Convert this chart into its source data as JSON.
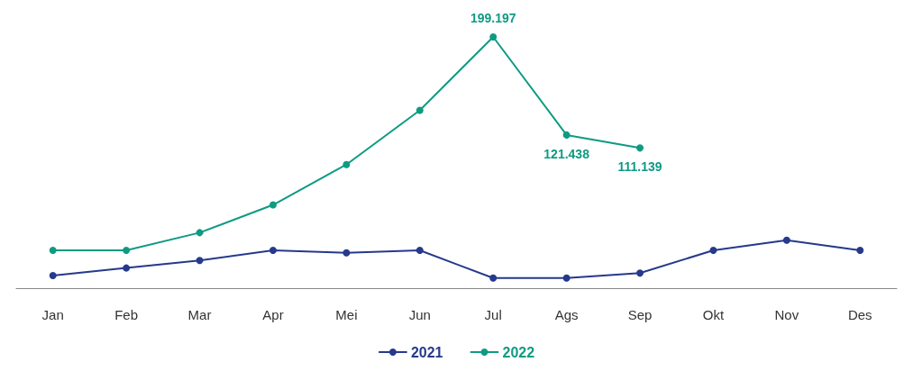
{
  "chart_data": {
    "type": "line",
    "categories": [
      "Jan",
      "Feb",
      "Mar",
      "Apr",
      "Mei",
      "Jun",
      "Jul",
      "Ags",
      "Sep",
      "Okt",
      "Nov",
      "Des"
    ],
    "series": [
      {
        "name": "2021",
        "color": "#26398c",
        "values": [
          10,
          16,
          22,
          30,
          28,
          30,
          8,
          8,
          12,
          30,
          38,
          30
        ]
      },
      {
        "name": "2022",
        "color": "#0f9a83",
        "values": [
          30,
          30,
          44,
          66,
          98,
          141,
          199.197,
          121.438,
          111.139,
          null,
          null,
          null
        ],
        "value_labels": [
          null,
          null,
          null,
          null,
          null,
          null,
          "199.197",
          "121.438",
          "111.139",
          null,
          null,
          null
        ]
      }
    ],
    "legend": "bottom",
    "grid": false,
    "marker": "circle",
    "line_style": "solid",
    "tick_labels": "x"
  }
}
